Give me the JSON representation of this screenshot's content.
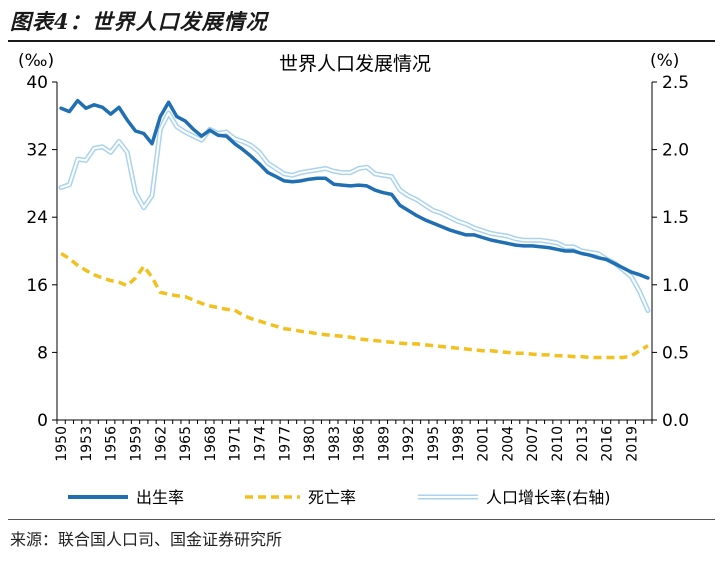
{
  "figure_title": "图表4：世界人口发展情况",
  "source": "来源：联合国人口司、国金证券研究所",
  "chart_data": {
    "type": "line",
    "title": "世界人口发展情况",
    "ylabel_left": "(‰)",
    "ylabel_right": "(%)",
    "ylim_left": [
      0,
      40
    ],
    "ylim_right": [
      0,
      2.5
    ],
    "yticks_left": [
      "0",
      "8",
      "16",
      "24",
      "32",
      "40"
    ],
    "yticks_right": [
      "0.0",
      "0.5",
      "1.0",
      "1.5",
      "2.0",
      "2.5"
    ],
    "xticks": [
      "1950",
      "1953",
      "1956",
      "1959",
      "1962",
      "1965",
      "1968",
      "1971",
      "1974",
      "1977",
      "1980",
      "1983",
      "1986",
      "1989",
      "1992",
      "1995",
      "1998",
      "2001",
      "2004",
      "2007",
      "2010",
      "2013",
      "2016",
      "2019"
    ],
    "x": [
      1950,
      1951,
      1952,
      1953,
      1954,
      1955,
      1956,
      1957,
      1958,
      1959,
      1960,
      1961,
      1962,
      1963,
      1964,
      1965,
      1966,
      1967,
      1968,
      1969,
      1970,
      1971,
      1972,
      1973,
      1974,
      1975,
      1976,
      1977,
      1978,
      1979,
      1980,
      1981,
      1982,
      1983,
      1984,
      1985,
      1986,
      1987,
      1988,
      1989,
      1990,
      1991,
      1992,
      1993,
      1994,
      1995,
      1996,
      1997,
      1998,
      1999,
      2000,
      2001,
      2002,
      2003,
      2004,
      2005,
      2006,
      2007,
      2008,
      2009,
      2010,
      2011,
      2012,
      2013,
      2014,
      2015,
      2016,
      2017,
      2018,
      2019,
      2020,
      2021
    ],
    "legend_position": "bottom",
    "series": [
      {
        "name": "出生率",
        "axis": "left",
        "color": "#1f6fb2",
        "style": "solid",
        "values": [
          36.9,
          36.5,
          37.8,
          36.9,
          37.3,
          37.0,
          36.2,
          37.0,
          35.5,
          34.2,
          33.9,
          32.7,
          35.9,
          37.6,
          35.9,
          35.4,
          34.4,
          33.6,
          34.3,
          33.7,
          33.6,
          32.7,
          32.0,
          31.2,
          30.3,
          29.3,
          28.8,
          28.3,
          28.2,
          28.3,
          28.5,
          28.6,
          28.6,
          27.9,
          27.8,
          27.7,
          27.8,
          27.7,
          27.2,
          26.9,
          26.7,
          25.4,
          24.8,
          24.2,
          23.7,
          23.3,
          22.9,
          22.5,
          22.2,
          21.9,
          21.9,
          21.6,
          21.3,
          21.1,
          20.9,
          20.7,
          20.6,
          20.6,
          20.5,
          20.4,
          20.2,
          20.0,
          20.0,
          19.7,
          19.5,
          19.2,
          19.0,
          18.5,
          18.0,
          17.5,
          17.2,
          16.8
        ]
      },
      {
        "name": "死亡率",
        "axis": "left",
        "color": "#f2c01f",
        "style": "dashed",
        "values": [
          19.7,
          19.1,
          18.3,
          17.7,
          17.2,
          16.8,
          16.5,
          16.3,
          15.9,
          16.8,
          18.2,
          16.9,
          15.1,
          14.9,
          14.7,
          14.6,
          14.2,
          13.8,
          13.5,
          13.3,
          13.1,
          13.0,
          12.4,
          12.0,
          11.7,
          11.4,
          11.1,
          10.8,
          10.7,
          10.5,
          10.4,
          10.2,
          10.1,
          10.0,
          9.9,
          9.8,
          9.6,
          9.5,
          9.4,
          9.3,
          9.2,
          9.1,
          9.0,
          9.0,
          8.9,
          8.8,
          8.7,
          8.6,
          8.5,
          8.4,
          8.3,
          8.2,
          8.2,
          8.1,
          8.0,
          7.9,
          7.9,
          7.8,
          7.7,
          7.7,
          7.6,
          7.6,
          7.5,
          7.5,
          7.4,
          7.4,
          7.4,
          7.4,
          7.4,
          7.6,
          8.2,
          8.8
        ]
      },
      {
        "name": "人口增长率(右轴)",
        "axis": "right",
        "color": "#a9d3ef",
        "style": "double",
        "values": [
          1.72,
          1.74,
          1.93,
          1.92,
          2.01,
          2.02,
          1.98,
          2.06,
          1.98,
          1.68,
          1.57,
          1.66,
          2.15,
          2.27,
          2.17,
          2.13,
          2.1,
          2.07,
          2.15,
          2.12,
          2.13,
          2.08,
          2.06,
          2.03,
          1.98,
          1.9,
          1.86,
          1.82,
          1.81,
          1.83,
          1.84,
          1.85,
          1.86,
          1.84,
          1.83,
          1.83,
          1.86,
          1.87,
          1.82,
          1.81,
          1.8,
          1.7,
          1.66,
          1.63,
          1.59,
          1.55,
          1.53,
          1.5,
          1.47,
          1.45,
          1.42,
          1.4,
          1.38,
          1.37,
          1.36,
          1.34,
          1.33,
          1.33,
          1.33,
          1.32,
          1.31,
          1.28,
          1.28,
          1.25,
          1.24,
          1.23,
          1.19,
          1.16,
          1.11,
          1.06,
          0.95,
          0.81
        ]
      }
    ]
  }
}
